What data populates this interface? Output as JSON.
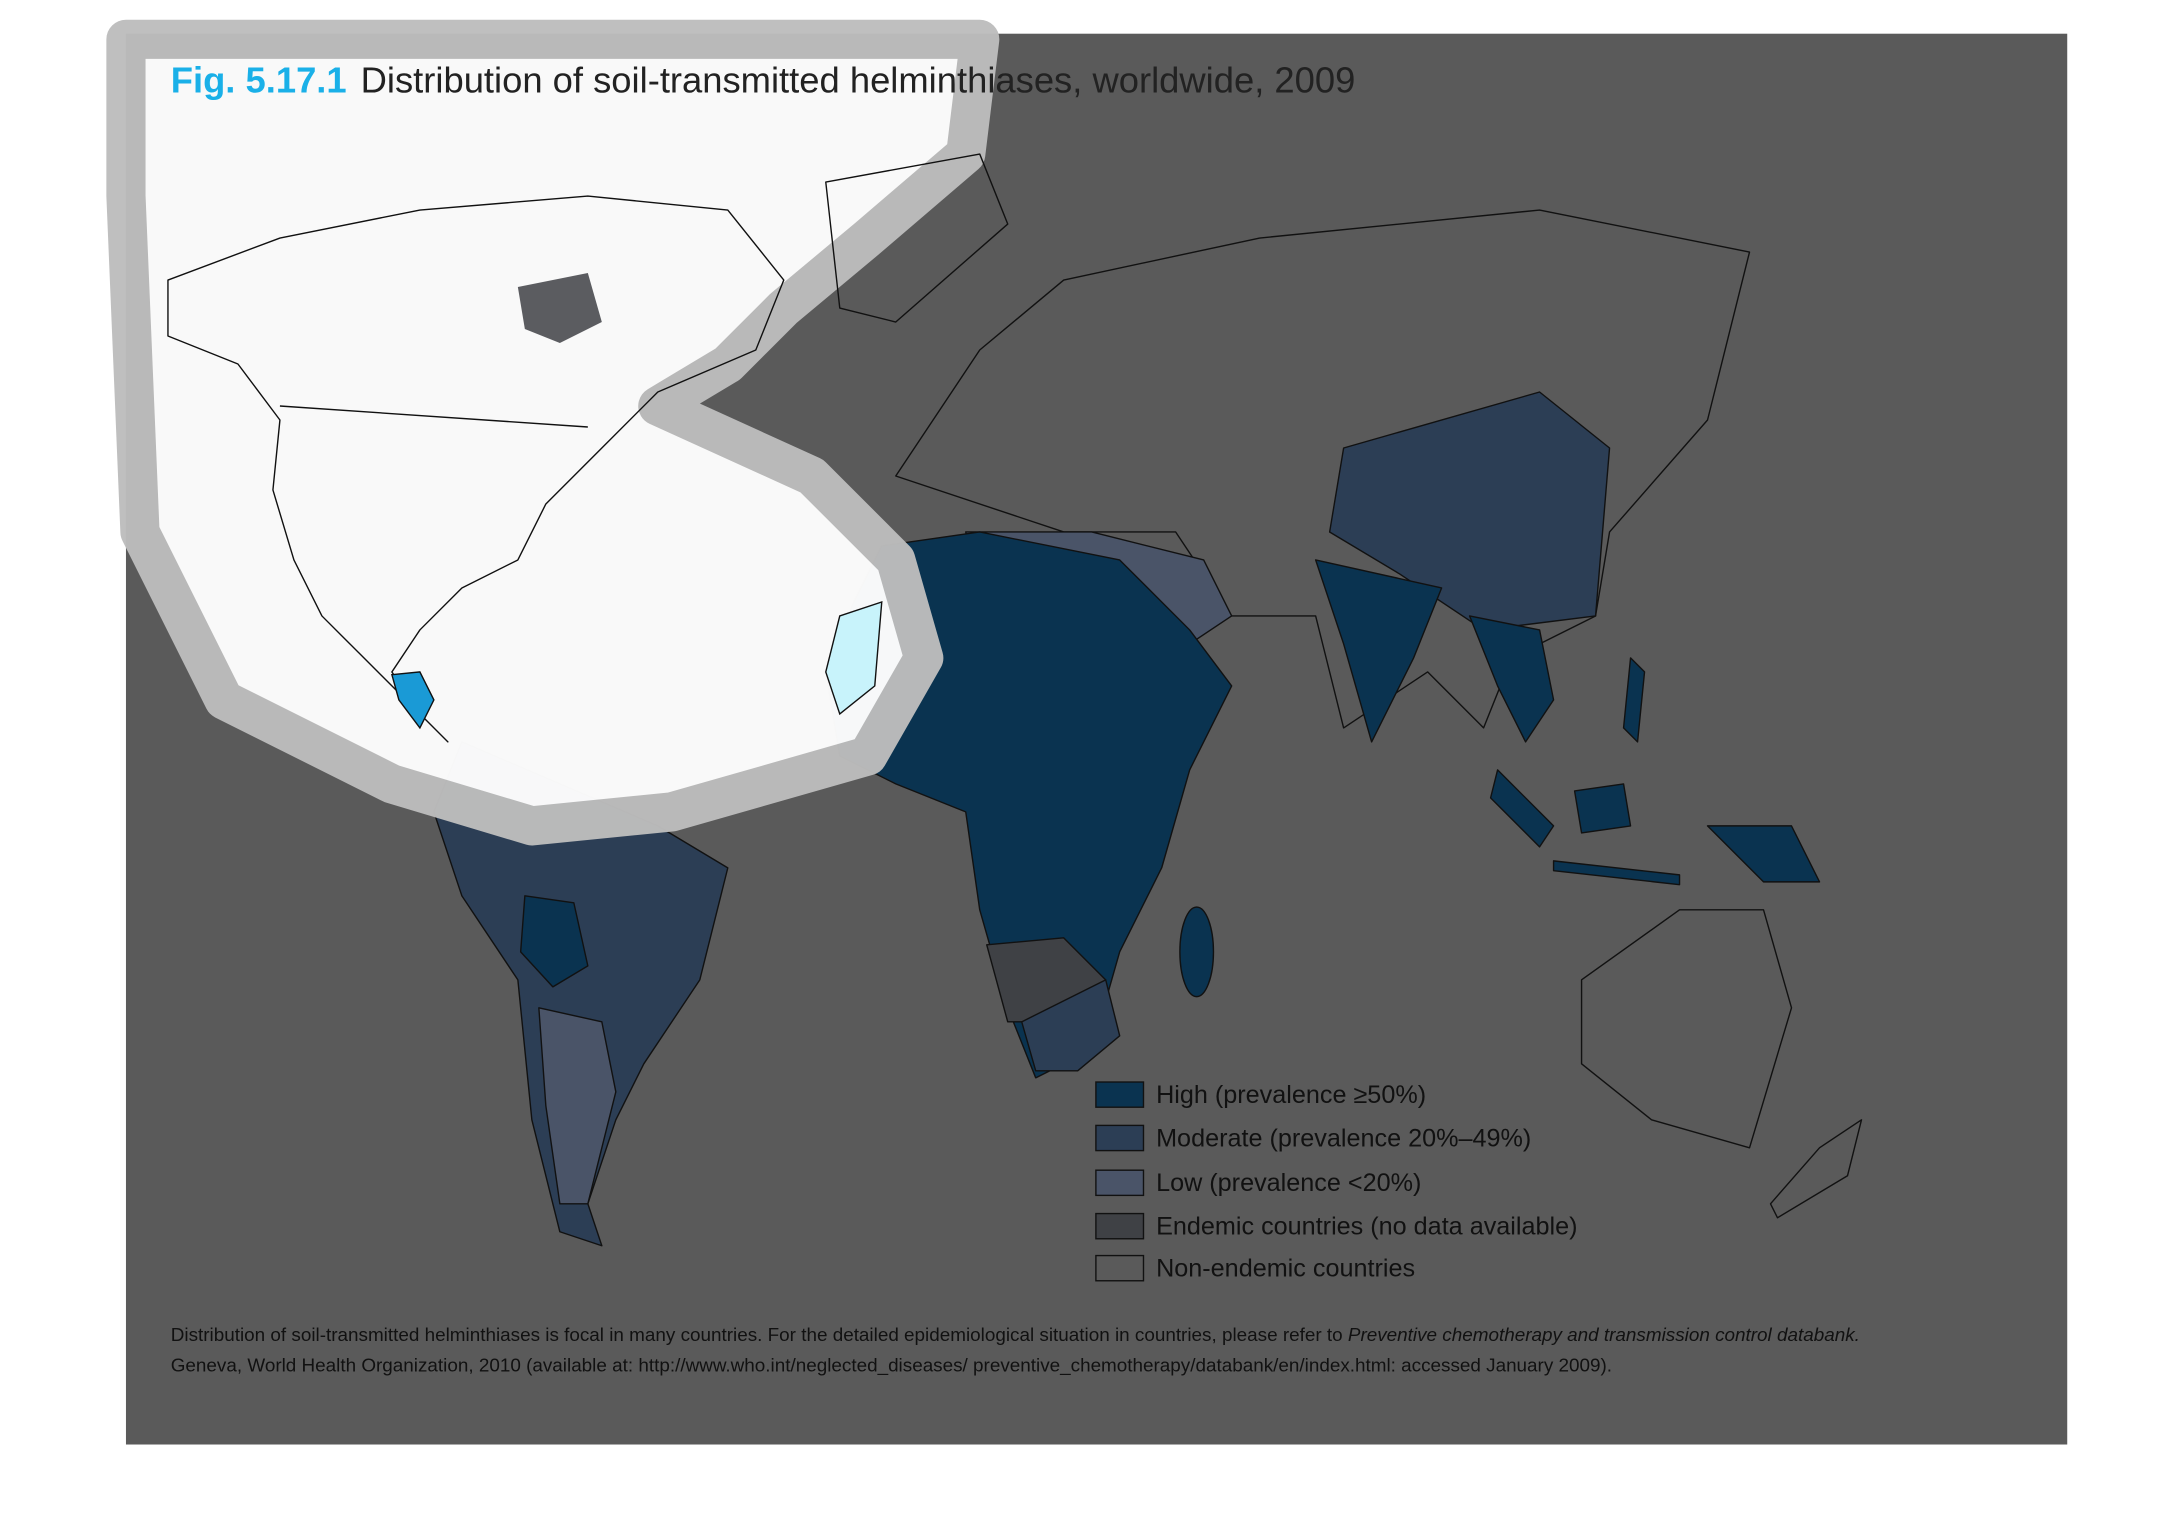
{
  "header": {
    "fig": "Fig. 5.17.1",
    "title": "Distribution of soil-transmitted helminthiases, worldwide, 2009"
  },
  "legend": {
    "items": [
      "High (prevalence ≥50%)",
      "Moderate (prevalence 20%–49%)",
      "Low (prevalence <20%)",
      "Endemic countries (no data available)",
      "Non-endemic countries"
    ]
  },
  "footnote": {
    "line1": "Distribution of soil-transmitted helminthiases is focal in many countries. For the detailed epidemiological situation in countries, please refer to ",
    "line1_italic": "Preventive chemotherapy and transmission control databank.",
    "line2": "Geneva, World Health Organization, 2010 (available at: http://www.who.int/neglected_diseases/ preventive_chemotherapy/databank/en/index.html: accessed January 2009)."
  }
}
